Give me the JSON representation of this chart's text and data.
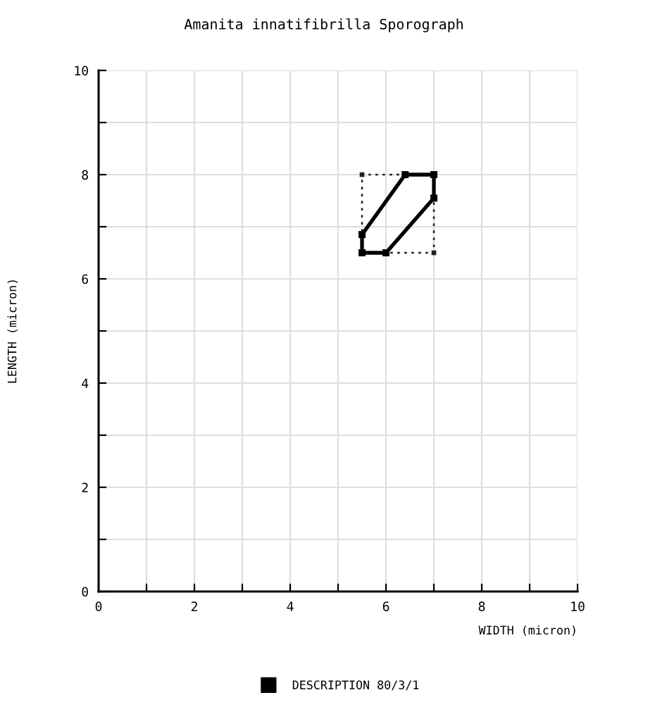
{
  "chart_data": {
    "type": "line",
    "title": "Amanita innatifibrilla Sporograph",
    "xlabel": "WIDTH (micron)",
    "ylabel": "LENGTH (micron)",
    "xlim": [
      0,
      10
    ],
    "ylim": [
      0,
      10
    ],
    "xticks": [
      0,
      {
        "value": 1,
        "label": null
      },
      2,
      {
        "value": 3,
        "label": null
      },
      4,
      {
        "value": 5,
        "label": null
      },
      6,
      {
        "value": 7,
        "label": null
      },
      8,
      {
        "value": 9,
        "label": null
      },
      10
    ],
    "yticks": [
      0,
      {
        "value": 1,
        "label": null
      },
      2,
      {
        "value": 3,
        "label": null
      },
      4,
      {
        "value": 5,
        "label": null
      },
      6,
      {
        "value": 7,
        "label": null
      },
      8,
      {
        "value": 9,
        "label": null
      },
      10
    ],
    "grid": true,
    "legend": "bottom",
    "series": [
      {
        "name": "DESCRIPTION 80/3/1",
        "color": "#000000",
        "marker": "square",
        "line_style": "solid",
        "x": [
          5.5,
          5.5,
          6.4,
          7.0,
          null,
          5.5,
          6.0,
          7.0,
          7.0
        ],
        "values": [
          6.5,
          6.85,
          8.0,
          8.0,
          null,
          6.5,
          6.5,
          7.55,
          8.0
        ]
      },
      {
        "color": "#222222",
        "marker": "square",
        "line_style": "dotted",
        "x": [
          5.5,
          5.5,
          7.0,
          null,
          5.5,
          7.0,
          7.0
        ],
        "values": [
          6.5,
          8.0,
          8.0,
          null,
          6.5,
          6.5,
          8.0
        ]
      }
    ]
  }
}
